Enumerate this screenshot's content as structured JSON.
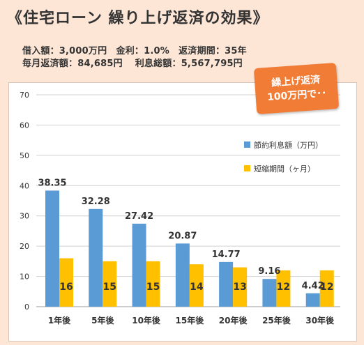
{
  "header": {
    "title": "《住宅ローン 繰り上げ返済の効果》",
    "line1": "借入額：3,000万円　金利：1.0%　返済期間：35年",
    "line2": "毎月返済額：84,685円　 利息総額：5,567,795円"
  },
  "callout": {
    "line1": "繰上げ返済",
    "line2": "100万円で･･"
  },
  "colors": {
    "series1": "#5b9bd5",
    "series2": "#ffc000",
    "background": "#fde6d6",
    "callout": "#f07c36"
  },
  "chart_data": {
    "type": "bar",
    "title": "",
    "xlabel": "",
    "ylabel": "",
    "categories": [
      "1年後",
      "5年後",
      "10年後",
      "15年後",
      "20年後",
      "25年後",
      "30年後"
    ],
    "series": [
      {
        "name": "節約利息額（万円）",
        "values": [
          38.35,
          32.28,
          27.42,
          20.87,
          14.77,
          9.16,
          4.42
        ]
      },
      {
        "name": "短縮期間（ヶ月）",
        "values": [
          16,
          15,
          15,
          14,
          13,
          12,
          12
        ]
      }
    ],
    "y_ticks": [
      0,
      10,
      20,
      30,
      40,
      50,
      60,
      70
    ],
    "ylim": [
      0,
      70
    ],
    "grid": true,
    "legend_position": "right"
  }
}
